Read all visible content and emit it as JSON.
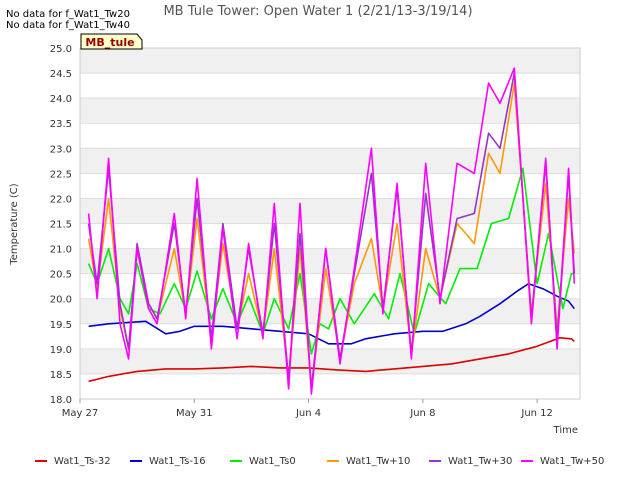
{
  "chart_data": {
    "type": "line",
    "title": "MB Tule Tower: Open Water 1 (2/21/13-3/19/14)",
    "xlabel": "Time",
    "ylabel": "Temperature (C)",
    "ylim": [
      18.0,
      25.0
    ],
    "yticks": [
      "18.0",
      "18.5",
      "19.0",
      "19.5",
      "20.0",
      "20.5",
      "21.0",
      "21.5",
      "22.0",
      "22.5",
      "23.0",
      "23.5",
      "24.0",
      "24.5",
      "25.0"
    ],
    "xlim_days": [
      27,
      44.5
    ],
    "xticks": [
      {
        "label": "May 27",
        "day": 27
      },
      {
        "label": "May 31",
        "day": 31
      },
      {
        "label": "Jun 4",
        "day": 35
      },
      {
        "label": "Jun 8",
        "day": 39
      },
      {
        "label": "Jun 12",
        "day": 43
      }
    ],
    "grid": true,
    "band_shading": true,
    "no_data_messages": [
      "No data for f_Wat1_Tw20",
      "No data for f_Wat1_Tw40"
    ],
    "site_label": "MB_tule",
    "legend_position": "bottom",
    "series": [
      {
        "name": "Wat1_Ts-32",
        "color": "#dd0000",
        "points": [
          [
            27.3,
            18.35
          ],
          [
            28,
            18.45
          ],
          [
            29,
            18.55
          ],
          [
            30,
            18.6
          ],
          [
            31,
            18.6
          ],
          [
            32,
            18.62
          ],
          [
            33,
            18.65
          ],
          [
            34,
            18.62
          ],
          [
            35,
            18.62
          ],
          [
            36,
            18.58
          ],
          [
            37,
            18.55
          ],
          [
            38,
            18.6
          ],
          [
            39,
            18.65
          ],
          [
            40,
            18.7
          ],
          [
            41,
            18.8
          ],
          [
            42,
            18.9
          ],
          [
            43,
            19.05
          ],
          [
            43.8,
            19.22
          ],
          [
            44.2,
            19.2
          ],
          [
            44.3,
            19.15
          ]
        ]
      },
      {
        "name": "Wat1_Ts-16",
        "color": "#0000cc",
        "points": [
          [
            27.3,
            19.45
          ],
          [
            28,
            19.5
          ],
          [
            29.3,
            19.55
          ],
          [
            30,
            19.3
          ],
          [
            30.5,
            19.35
          ],
          [
            31,
            19.45
          ],
          [
            32,
            19.45
          ],
          [
            33,
            19.4
          ],
          [
            34,
            19.35
          ],
          [
            35,
            19.3
          ],
          [
            35.7,
            19.1
          ],
          [
            36.5,
            19.1
          ],
          [
            37,
            19.2
          ],
          [
            38,
            19.3
          ],
          [
            39,
            19.35
          ],
          [
            39.7,
            19.35
          ],
          [
            40.5,
            19.5
          ],
          [
            41,
            19.65
          ],
          [
            41.7,
            19.9
          ],
          [
            42.3,
            20.15
          ],
          [
            42.7,
            20.3
          ],
          [
            43.2,
            20.2
          ],
          [
            43.7,
            20.05
          ],
          [
            44.1,
            19.95
          ],
          [
            44.3,
            19.8
          ]
        ]
      },
      {
        "name": "Wat1_Ts0",
        "color": "#00ee00",
        "points": [
          [
            27.3,
            20.7
          ],
          [
            27.6,
            20.3
          ],
          [
            28,
            21.0
          ],
          [
            28.4,
            20.0
          ],
          [
            28.7,
            19.7
          ],
          [
            29,
            20.7
          ],
          [
            29.4,
            19.8
          ],
          [
            29.8,
            19.7
          ],
          [
            30.3,
            20.3
          ],
          [
            30.7,
            19.8
          ],
          [
            31.1,
            20.55
          ],
          [
            31.6,
            19.6
          ],
          [
            32,
            20.2
          ],
          [
            32.5,
            19.5
          ],
          [
            32.9,
            20.05
          ],
          [
            33.4,
            19.3
          ],
          [
            33.8,
            20.0
          ],
          [
            34.3,
            19.4
          ],
          [
            34.7,
            20.5
          ],
          [
            35.1,
            18.9
          ],
          [
            35.4,
            19.5
          ],
          [
            35.7,
            19.4
          ],
          [
            36.1,
            20.0
          ],
          [
            36.6,
            19.5
          ],
          [
            37.3,
            20.1
          ],
          [
            37.8,
            19.6
          ],
          [
            38.2,
            20.5
          ],
          [
            38.7,
            19.3
          ],
          [
            39.2,
            20.3
          ],
          [
            39.8,
            19.9
          ],
          [
            40.3,
            20.6
          ],
          [
            40.9,
            20.6
          ],
          [
            41.4,
            21.5
          ],
          [
            42,
            21.6
          ],
          [
            42.5,
            22.6
          ],
          [
            43,
            20.3
          ],
          [
            43.4,
            21.3
          ],
          [
            43.9,
            19.8
          ],
          [
            44.2,
            20.5
          ],
          [
            44.3,
            20.5
          ]
        ]
      },
      {
        "name": "Wat1_Tw+10",
        "color": "#ff9900",
        "points": [
          [
            27.3,
            21.2
          ],
          [
            27.6,
            20.2
          ],
          [
            28,
            22.0
          ],
          [
            28.4,
            19.8
          ],
          [
            28.7,
            19.0
          ],
          [
            29,
            21.0
          ],
          [
            29.4,
            19.9
          ],
          [
            29.7,
            19.6
          ],
          [
            30.3,
            21.0
          ],
          [
            30.7,
            19.7
          ],
          [
            31.1,
            21.6
          ],
          [
            31.6,
            19.2
          ],
          [
            32,
            21.1
          ],
          [
            32.5,
            19.4
          ],
          [
            32.9,
            20.5
          ],
          [
            33.4,
            19.3
          ],
          [
            33.8,
            21.0
          ],
          [
            34.3,
            18.4
          ],
          [
            34.7,
            21.0
          ],
          [
            35.1,
            18.2
          ],
          [
            35.6,
            20.6
          ],
          [
            36.1,
            18.8
          ],
          [
            36.6,
            20.3
          ],
          [
            37.2,
            21.2
          ],
          [
            37.6,
            19.8
          ],
          [
            38.1,
            21.5
          ],
          [
            38.6,
            18.9
          ],
          [
            39.1,
            21.0
          ],
          [
            39.6,
            20.0
          ],
          [
            40.2,
            21.5
          ],
          [
            40.8,
            21.1
          ],
          [
            41.3,
            22.9
          ],
          [
            41.7,
            22.5
          ],
          [
            42.2,
            24.3
          ],
          [
            42.8,
            19.7
          ],
          [
            43.3,
            22.3
          ],
          [
            43.7,
            19.4
          ],
          [
            44.1,
            22.0
          ],
          [
            44.3,
            20.9
          ]
        ]
      },
      {
        "name": "Wat1_Tw+30",
        "color": "#9933cc",
        "points": [
          [
            27.3,
            21.5
          ],
          [
            27.6,
            20.3
          ],
          [
            28,
            22.6
          ],
          [
            28.4,
            19.9
          ],
          [
            28.7,
            19.0
          ],
          [
            29,
            21.1
          ],
          [
            29.4,
            19.9
          ],
          [
            29.7,
            19.6
          ],
          [
            30.3,
            21.5
          ],
          [
            30.7,
            19.7
          ],
          [
            31.1,
            22.0
          ],
          [
            31.6,
            19.2
          ],
          [
            32,
            21.5
          ],
          [
            32.5,
            19.4
          ],
          [
            32.9,
            21.0
          ],
          [
            33.4,
            19.3
          ],
          [
            33.8,
            21.5
          ],
          [
            34.3,
            18.4
          ],
          [
            34.7,
            21.3
          ],
          [
            35.1,
            18.2
          ],
          [
            35.6,
            21.0
          ],
          [
            36.1,
            18.8
          ],
          [
            36.6,
            20.5
          ],
          [
            37.2,
            22.5
          ],
          [
            37.6,
            19.8
          ],
          [
            38.1,
            22.2
          ],
          [
            38.6,
            18.9
          ],
          [
            39.1,
            22.1
          ],
          [
            39.6,
            20.0
          ],
          [
            40.2,
            21.6
          ],
          [
            40.8,
            21.7
          ],
          [
            41.3,
            23.3
          ],
          [
            41.7,
            23.0
          ],
          [
            42.2,
            24.5
          ],
          [
            42.8,
            19.6
          ],
          [
            43.3,
            22.7
          ],
          [
            43.7,
            19.2
          ],
          [
            44.1,
            22.5
          ],
          [
            44.3,
            20.5
          ]
        ]
      },
      {
        "name": "Wat1_Tw+50",
        "color": "#ff00ff",
        "points": [
          [
            27.3,
            21.7
          ],
          [
            27.6,
            20.0
          ],
          [
            28,
            22.8
          ],
          [
            28.4,
            19.5
          ],
          [
            28.7,
            18.8
          ],
          [
            29,
            21.0
          ],
          [
            29.4,
            19.8
          ],
          [
            29.7,
            19.5
          ],
          [
            30.3,
            21.7
          ],
          [
            30.7,
            19.6
          ],
          [
            31.1,
            22.4
          ],
          [
            31.6,
            19.0
          ],
          [
            32,
            21.4
          ],
          [
            32.5,
            19.2
          ],
          [
            32.9,
            21.1
          ],
          [
            33.4,
            19.2
          ],
          [
            33.8,
            21.9
          ],
          [
            34.3,
            18.2
          ],
          [
            34.7,
            21.9
          ],
          [
            35.1,
            18.1
          ],
          [
            35.6,
            21.0
          ],
          [
            36.1,
            18.7
          ],
          [
            36.6,
            20.6
          ],
          [
            37.2,
            23.0
          ],
          [
            37.6,
            19.7
          ],
          [
            38.1,
            22.3
          ],
          [
            38.6,
            18.8
          ],
          [
            39.1,
            22.7
          ],
          [
            39.6,
            19.9
          ],
          [
            40.2,
            22.7
          ],
          [
            40.8,
            22.5
          ],
          [
            41.3,
            24.3
          ],
          [
            41.7,
            23.9
          ],
          [
            42.2,
            24.6
          ],
          [
            42.8,
            19.5
          ],
          [
            43.3,
            22.8
          ],
          [
            43.7,
            19.0
          ],
          [
            44.1,
            22.6
          ],
          [
            44.3,
            20.3
          ]
        ]
      }
    ]
  }
}
